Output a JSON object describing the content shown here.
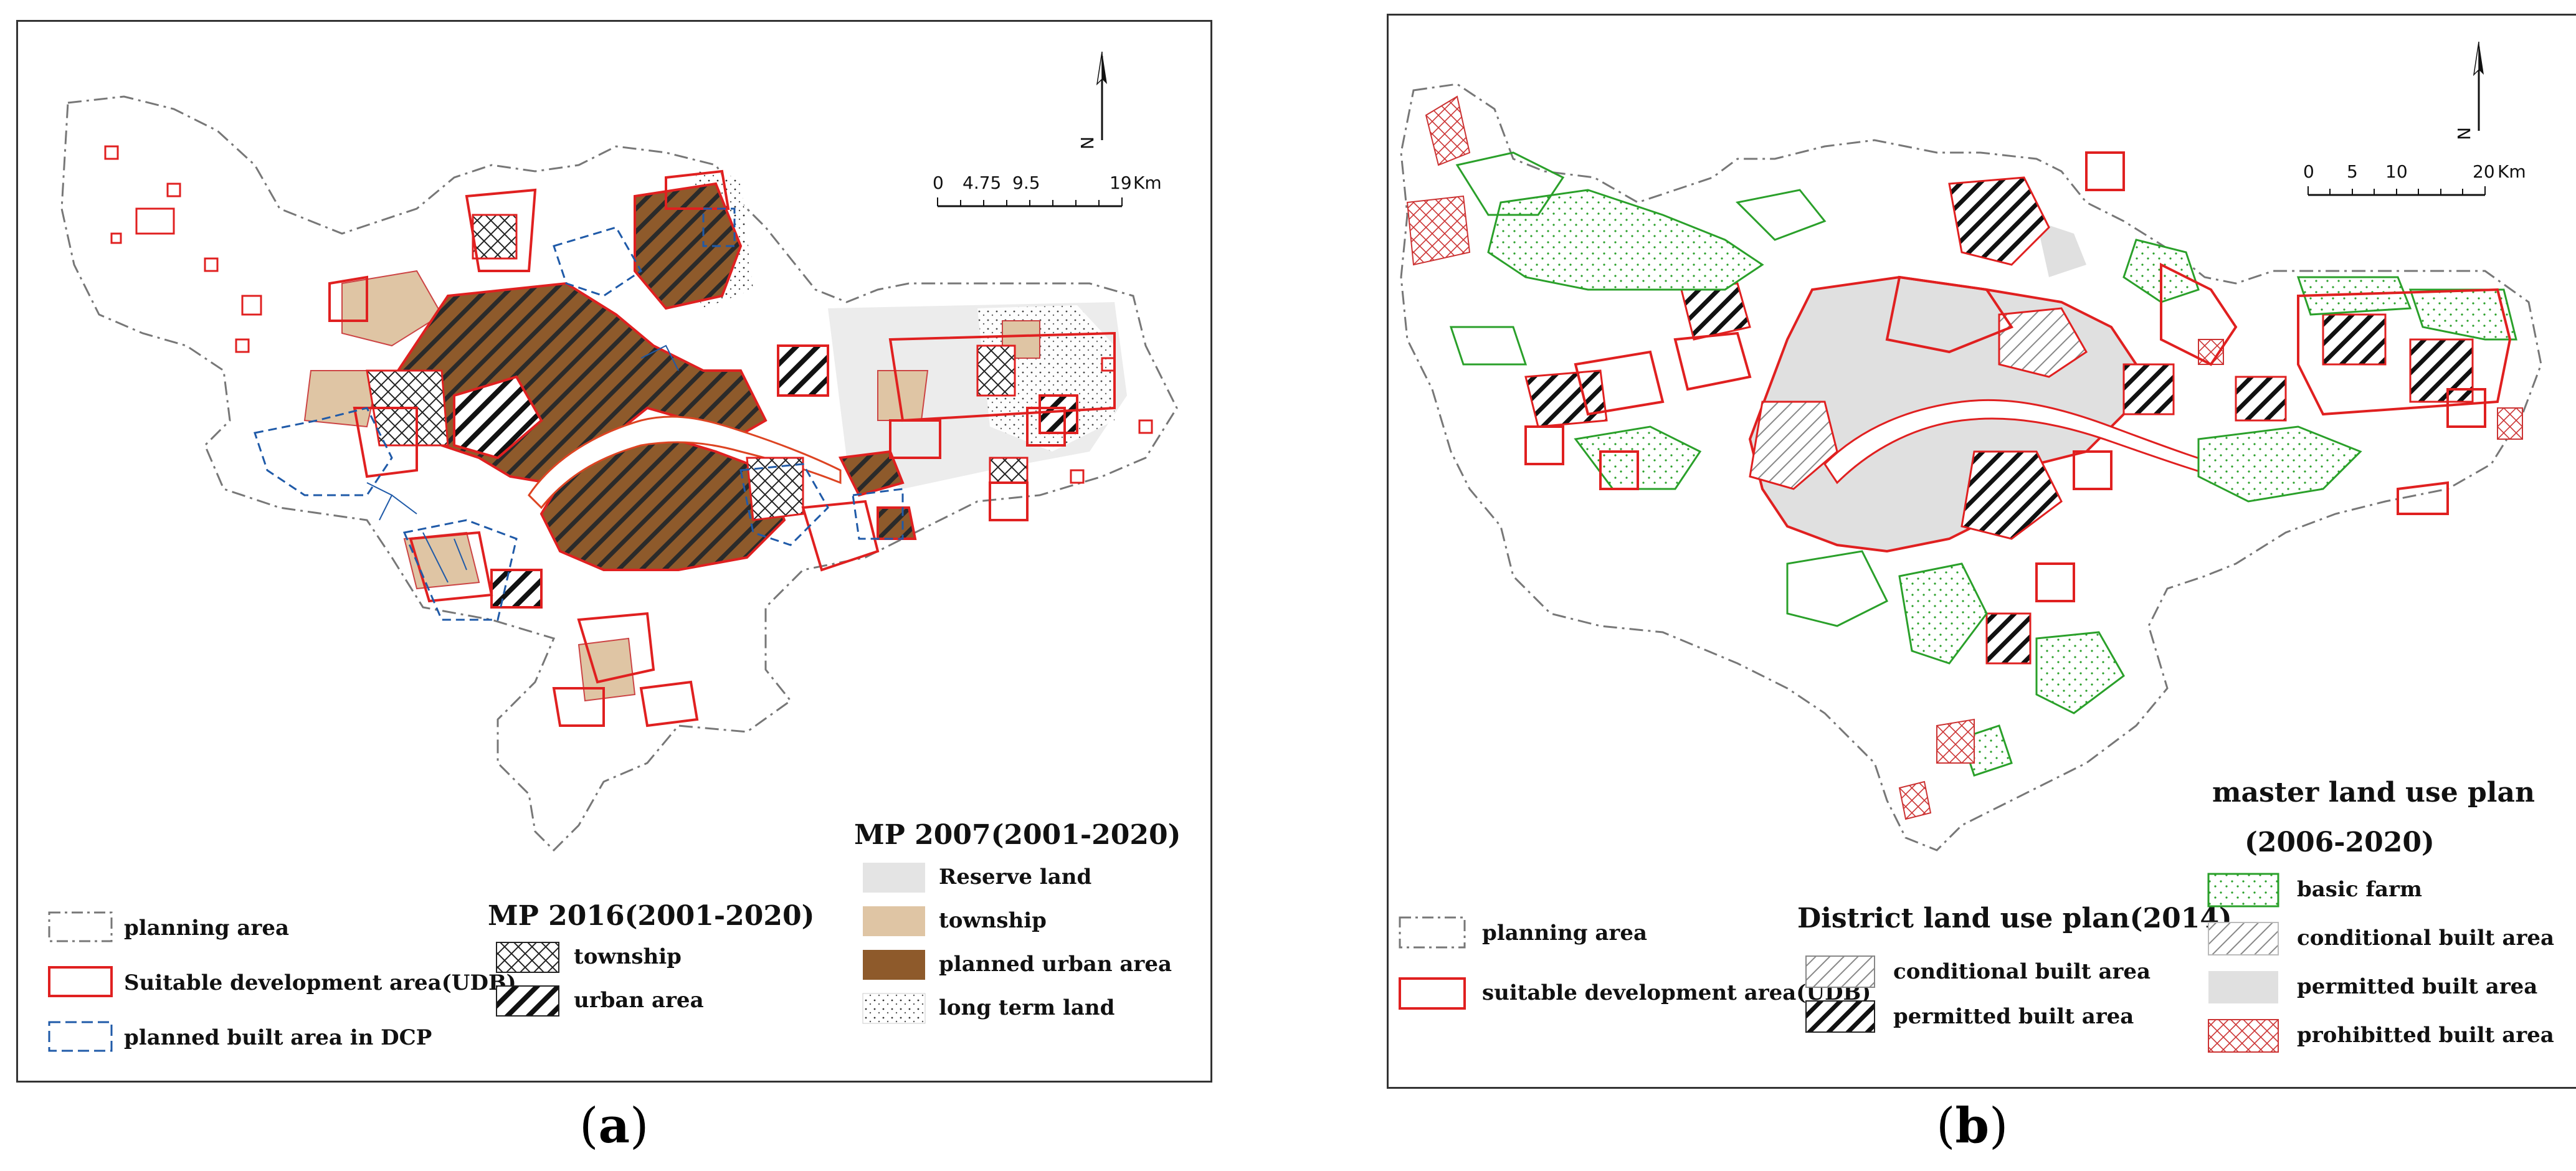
{
  "panel_a": {
    "caption": "a",
    "scale": {
      "labels": [
        "0",
        "4.75",
        "9.5",
        "19"
      ],
      "unit": "Km"
    },
    "north_label": "N",
    "legend_general": [
      {
        "label": "planning area",
        "symbol": "dashdot-gray"
      },
      {
        "label": "Suitable development area(UDB)",
        "symbol": "solid-red"
      },
      {
        "label": "planned built area in DCP",
        "symbol": "dashed-blue"
      }
    ],
    "legend_mp2016": {
      "title": "MP 2016(2001-2020)",
      "items": [
        {
          "label": "township",
          "symbol": "crosshatch"
        },
        {
          "label": "urban area",
          "symbol": "diagonal-bold"
        }
      ]
    },
    "legend_mp2007": {
      "title": "MP 2007(2001-2020)",
      "items": [
        {
          "label": "Reserve land",
          "color": "#e4e4e4"
        },
        {
          "label": "township",
          "color": "#dfc5a4"
        },
        {
          "label": "planned urban area",
          "color": "#8e5a2b"
        },
        {
          "label": "long term land",
          "symbol": "dotted"
        }
      ]
    }
  },
  "panel_b": {
    "caption": "b",
    "scale": {
      "labels": [
        "0",
        "5",
        "10",
        "20"
      ],
      "unit": "Km"
    },
    "north_label": "N",
    "legend_general": [
      {
        "label": "planning area",
        "symbol": "dashdot-gray"
      },
      {
        "label": "suitable development area(UDB)",
        "symbol": "solid-red"
      }
    ],
    "legend_district": {
      "title": "District land use plan(2014)",
      "items": [
        {
          "label": "conditional built area",
          "symbol": "diagonal-thin"
        },
        {
          "label": "permitted built area",
          "symbol": "diagonal-bold"
        }
      ]
    },
    "legend_master": {
      "title_line1": "master land use plan",
      "title_line2": "(2006-2020)",
      "items": [
        {
          "label": "basic farm",
          "symbol": "green-dots"
        },
        {
          "label": "conditional built area",
          "symbol": "diagonal-thin"
        },
        {
          "label": "permitted built area",
          "color": "#e0e0e0"
        },
        {
          "label": "prohibitted built area",
          "symbol": "red-crosshatch"
        }
      ]
    }
  }
}
